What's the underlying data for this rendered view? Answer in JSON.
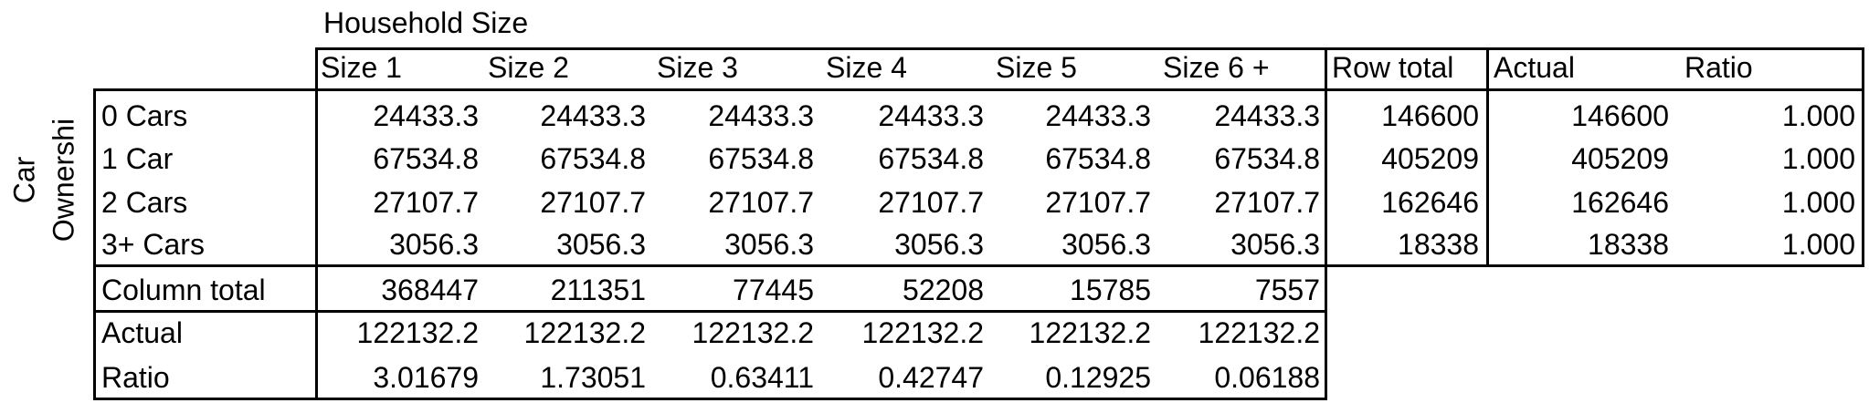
{
  "table": {
    "col_group_title": "Household Size",
    "row_group_title": [
      "Car",
      "Ownershi"
    ],
    "col_headers": [
      "Size 1",
      "Size 2",
      "Size 3",
      "Size 4",
      "Size 5",
      "Size 6 +"
    ],
    "row_total_header": "Row total",
    "actual_header": "Actual",
    "ratio_header": "Ratio",
    "rows": [
      {
        "label": "0 Cars",
        "values": [
          "24433.3",
          "24433.3",
          "24433.3",
          "24433.3",
          "24433.3",
          "24433.3"
        ],
        "row_total": "146600",
        "actual": "146600",
        "ratio": "1.000"
      },
      {
        "label": "1 Car",
        "values": [
          "67534.8",
          "67534.8",
          "67534.8",
          "67534.8",
          "67534.8",
          "67534.8"
        ],
        "row_total": "405209",
        "actual": "405209",
        "ratio": "1.000"
      },
      {
        "label": "2 Cars",
        "values": [
          "27107.7",
          "27107.7",
          "27107.7",
          "27107.7",
          "27107.7",
          "27107.7"
        ],
        "row_total": "162646",
        "actual": "162646",
        "ratio": "1.000"
      },
      {
        "label": "3+ Cars",
        "values": [
          "3056.3",
          "3056.3",
          "3056.3",
          "3056.3",
          "3056.3",
          "3056.3"
        ],
        "row_total": "18338",
        "actual": "18338",
        "ratio": "1.000"
      }
    ],
    "column_total": {
      "label": "Column total",
      "values": [
        "368447",
        "211351",
        "77445",
        "52208",
        "15785",
        "7557"
      ]
    },
    "actual_row": {
      "label": "Actual",
      "values": [
        "122132.2",
        "122132.2",
        "122132.2",
        "122132.2",
        "122132.2",
        "122132.2"
      ]
    },
    "ratio_row": {
      "label": "Ratio",
      "values": [
        "3.01679",
        "1.73051",
        "0.63411",
        "0.42747",
        "0.12925",
        "0.06188"
      ]
    }
  }
}
